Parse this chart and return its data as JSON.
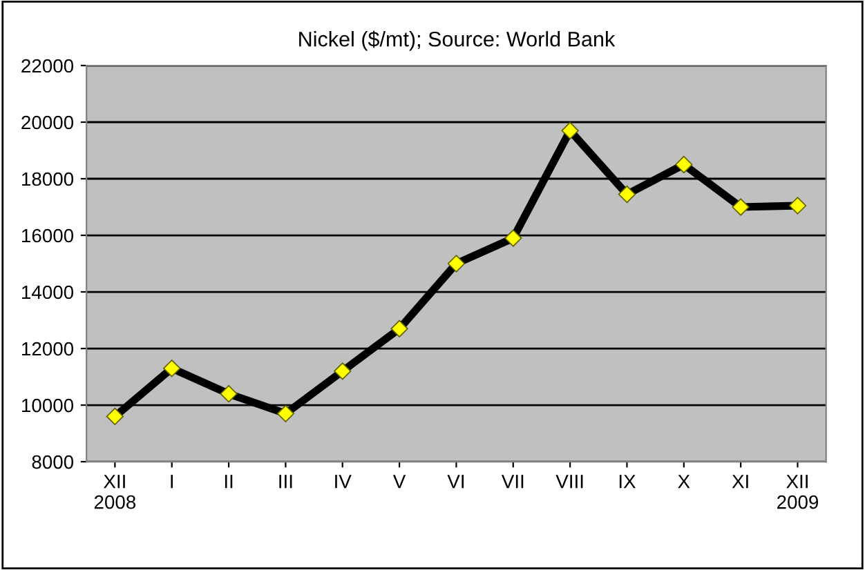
{
  "chart_data": {
    "type": "line",
    "title": "Nickel ($/mt); Source: World Bank",
    "categories": [
      "XII\n2008",
      "I",
      "II",
      "III",
      "IV",
      "V",
      "VI",
      "VII",
      "VIII",
      "IX",
      "X",
      "XI",
      "XII\n2009"
    ],
    "series": [
      {
        "color": "#000000",
        "values": [
          9600,
          11300,
          10400,
          9700,
          11200,
          12700,
          15000,
          15900,
          19700,
          17450,
          18500,
          17000,
          17050
        ]
      }
    ],
    "ylim": [
      8000,
      22000
    ],
    "yticks": [
      8000,
      10000,
      12000,
      14000,
      16000,
      18000,
      20000,
      22000
    ],
    "grid": "y",
    "marker": "diamond",
    "line_style": "solid",
    "legend": false
  }
}
